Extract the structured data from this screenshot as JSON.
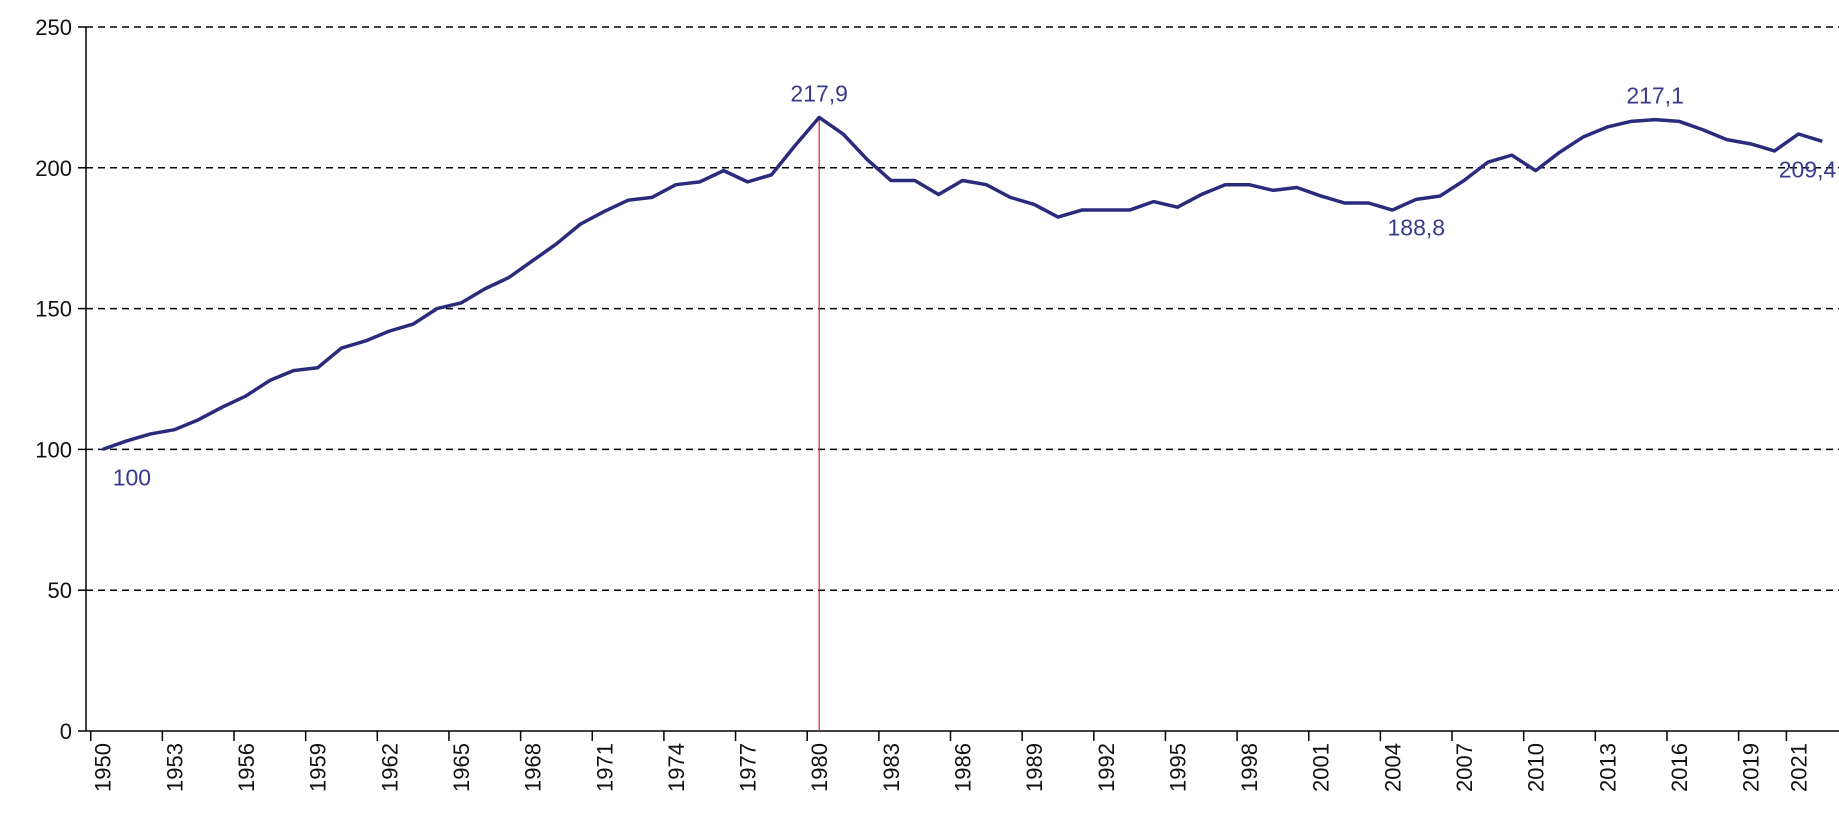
{
  "chart_data": {
    "type": "line",
    "x": [
      1950,
      1951,
      1952,
      1953,
      1954,
      1955,
      1956,
      1957,
      1958,
      1959,
      1960,
      1961,
      1962,
      1963,
      1964,
      1965,
      1966,
      1967,
      1968,
      1969,
      1970,
      1971,
      1972,
      1973,
      1974,
      1975,
      1976,
      1977,
      1978,
      1979,
      1980,
      1981,
      1982,
      1983,
      1984,
      1985,
      1986,
      1987,
      1988,
      1989,
      1990,
      1991,
      1992,
      1993,
      1994,
      1995,
      1996,
      1997,
      1998,
      1999,
      2000,
      2001,
      2002,
      2003,
      2004,
      2005,
      2006,
      2007,
      2008,
      2009,
      2010,
      2011,
      2012,
      2013,
      2014,
      2015,
      2016,
      2017,
      2018,
      2019,
      2020,
      2021,
      2022
    ],
    "series": [
      {
        "color": "#2b2b7d",
        "values": [
          100,
          103,
          105.5,
          107,
          110.5,
          115,
          119,
          124.5,
          128,
          129,
          136,
          138.5,
          142,
          144.5,
          150,
          152,
          157,
          161,
          167,
          173,
          180,
          184.5,
          188.5,
          189.5,
          194,
          195,
          199,
          195,
          197.5,
          208,
          217.9,
          212,
          203,
          195.5,
          195.5,
          190.5,
          195.5,
          194,
          189.5,
          187,
          182.5,
          185,
          185,
          185,
          188,
          186,
          190.5,
          194,
          194,
          192,
          193,
          190,
          187.5,
          187.5,
          185,
          188.8,
          190,
          195.5,
          202,
          204.5,
          199,
          205.5,
          211,
          214.5,
          216.5,
          217.1,
          216.5,
          213.5,
          210,
          208.5,
          206,
          212,
          209.4
        ],
        "value_labels": [
          "100",
          null,
          null,
          null,
          null,
          null,
          null,
          null,
          null,
          null,
          null,
          null,
          null,
          null,
          null,
          null,
          null,
          null,
          null,
          null,
          null,
          null,
          null,
          null,
          null,
          null,
          null,
          null,
          null,
          null,
          "217,9",
          null,
          null,
          null,
          null,
          null,
          null,
          null,
          null,
          null,
          null,
          null,
          null,
          null,
          null,
          null,
          null,
          null,
          null,
          null,
          null,
          null,
          null,
          null,
          null,
          "188,8",
          null,
          null,
          null,
          null,
          null,
          null,
          null,
          null,
          null,
          "217,1",
          null,
          null,
          null,
          null,
          null,
          null,
          "209,4"
        ]
      }
    ],
    "xlim": [
      1949.3,
      2022.7
    ],
    "xticks": [
      1950,
      1953,
      1956,
      1959,
      1962,
      1965,
      1968,
      1971,
      1974,
      1977,
      1980,
      1983,
      1986,
      1989,
      1992,
      1995,
      1998,
      2001,
      2004,
      2007,
      2010,
      2013,
      2016,
      2019,
      2021
    ],
    "ylim": [
      0,
      250
    ],
    "yticks": [
      0,
      50,
      100,
      150,
      200,
      250
    ],
    "grid": true,
    "reference_line": {
      "x": 1980,
      "color": "#e8231f"
    }
  }
}
